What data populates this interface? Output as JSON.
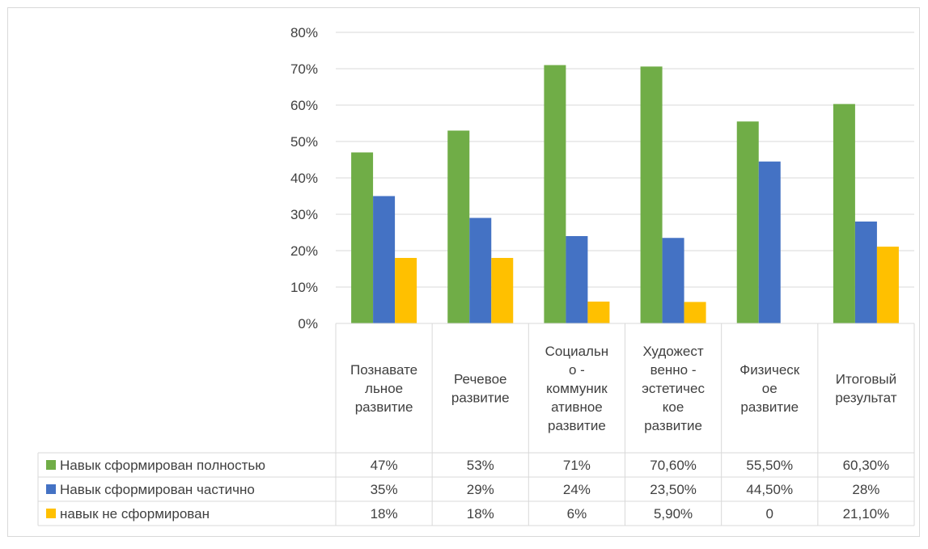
{
  "chart_data": {
    "type": "bar",
    "categories": [
      [
        "Познавате",
        "льное",
        "развитие"
      ],
      [
        "Речевое",
        "развитие"
      ],
      [
        "Социальн",
        "о -",
        "коммуник",
        "ативное",
        "развитие"
      ],
      [
        "Художест",
        "венно -",
        "эстетичес",
        "кое",
        "развитие"
      ],
      [
        "Физическ",
        "ое",
        "развитие"
      ],
      [
        "Итоговый",
        "результат"
      ]
    ],
    "series": [
      {
        "name": "Навык сформирован полностью",
        "color": "#70AD47",
        "values": [
          47,
          53,
          71,
          70.6,
          55.5,
          60.3
        ],
        "labels": [
          "47%",
          "53%",
          "71%",
          "70,60%",
          "55,50%",
          "60,30%"
        ]
      },
      {
        "name": "Навык сформирован частично",
        "color": "#4472C4",
        "values": [
          35,
          29,
          24,
          23.5,
          44.5,
          28
        ],
        "labels": [
          "35%",
          "29%",
          "24%",
          "23,50%",
          "44,50%",
          "28%"
        ]
      },
      {
        "name": "навык не сформирован",
        "color": "#FFC000",
        "values": [
          18,
          18,
          6,
          5.9,
          0,
          21.1
        ],
        "labels": [
          "18%",
          "18%",
          "6%",
          "5,90%",
          "0",
          "21,10%"
        ]
      }
    ],
    "y_ticks": [
      "0%",
      "10%",
      "20%",
      "30%",
      "40%",
      "50%",
      "60%",
      "70%",
      "80%"
    ],
    "ylim": [
      0,
      80
    ],
    "grid": true,
    "legend": "data table"
  }
}
